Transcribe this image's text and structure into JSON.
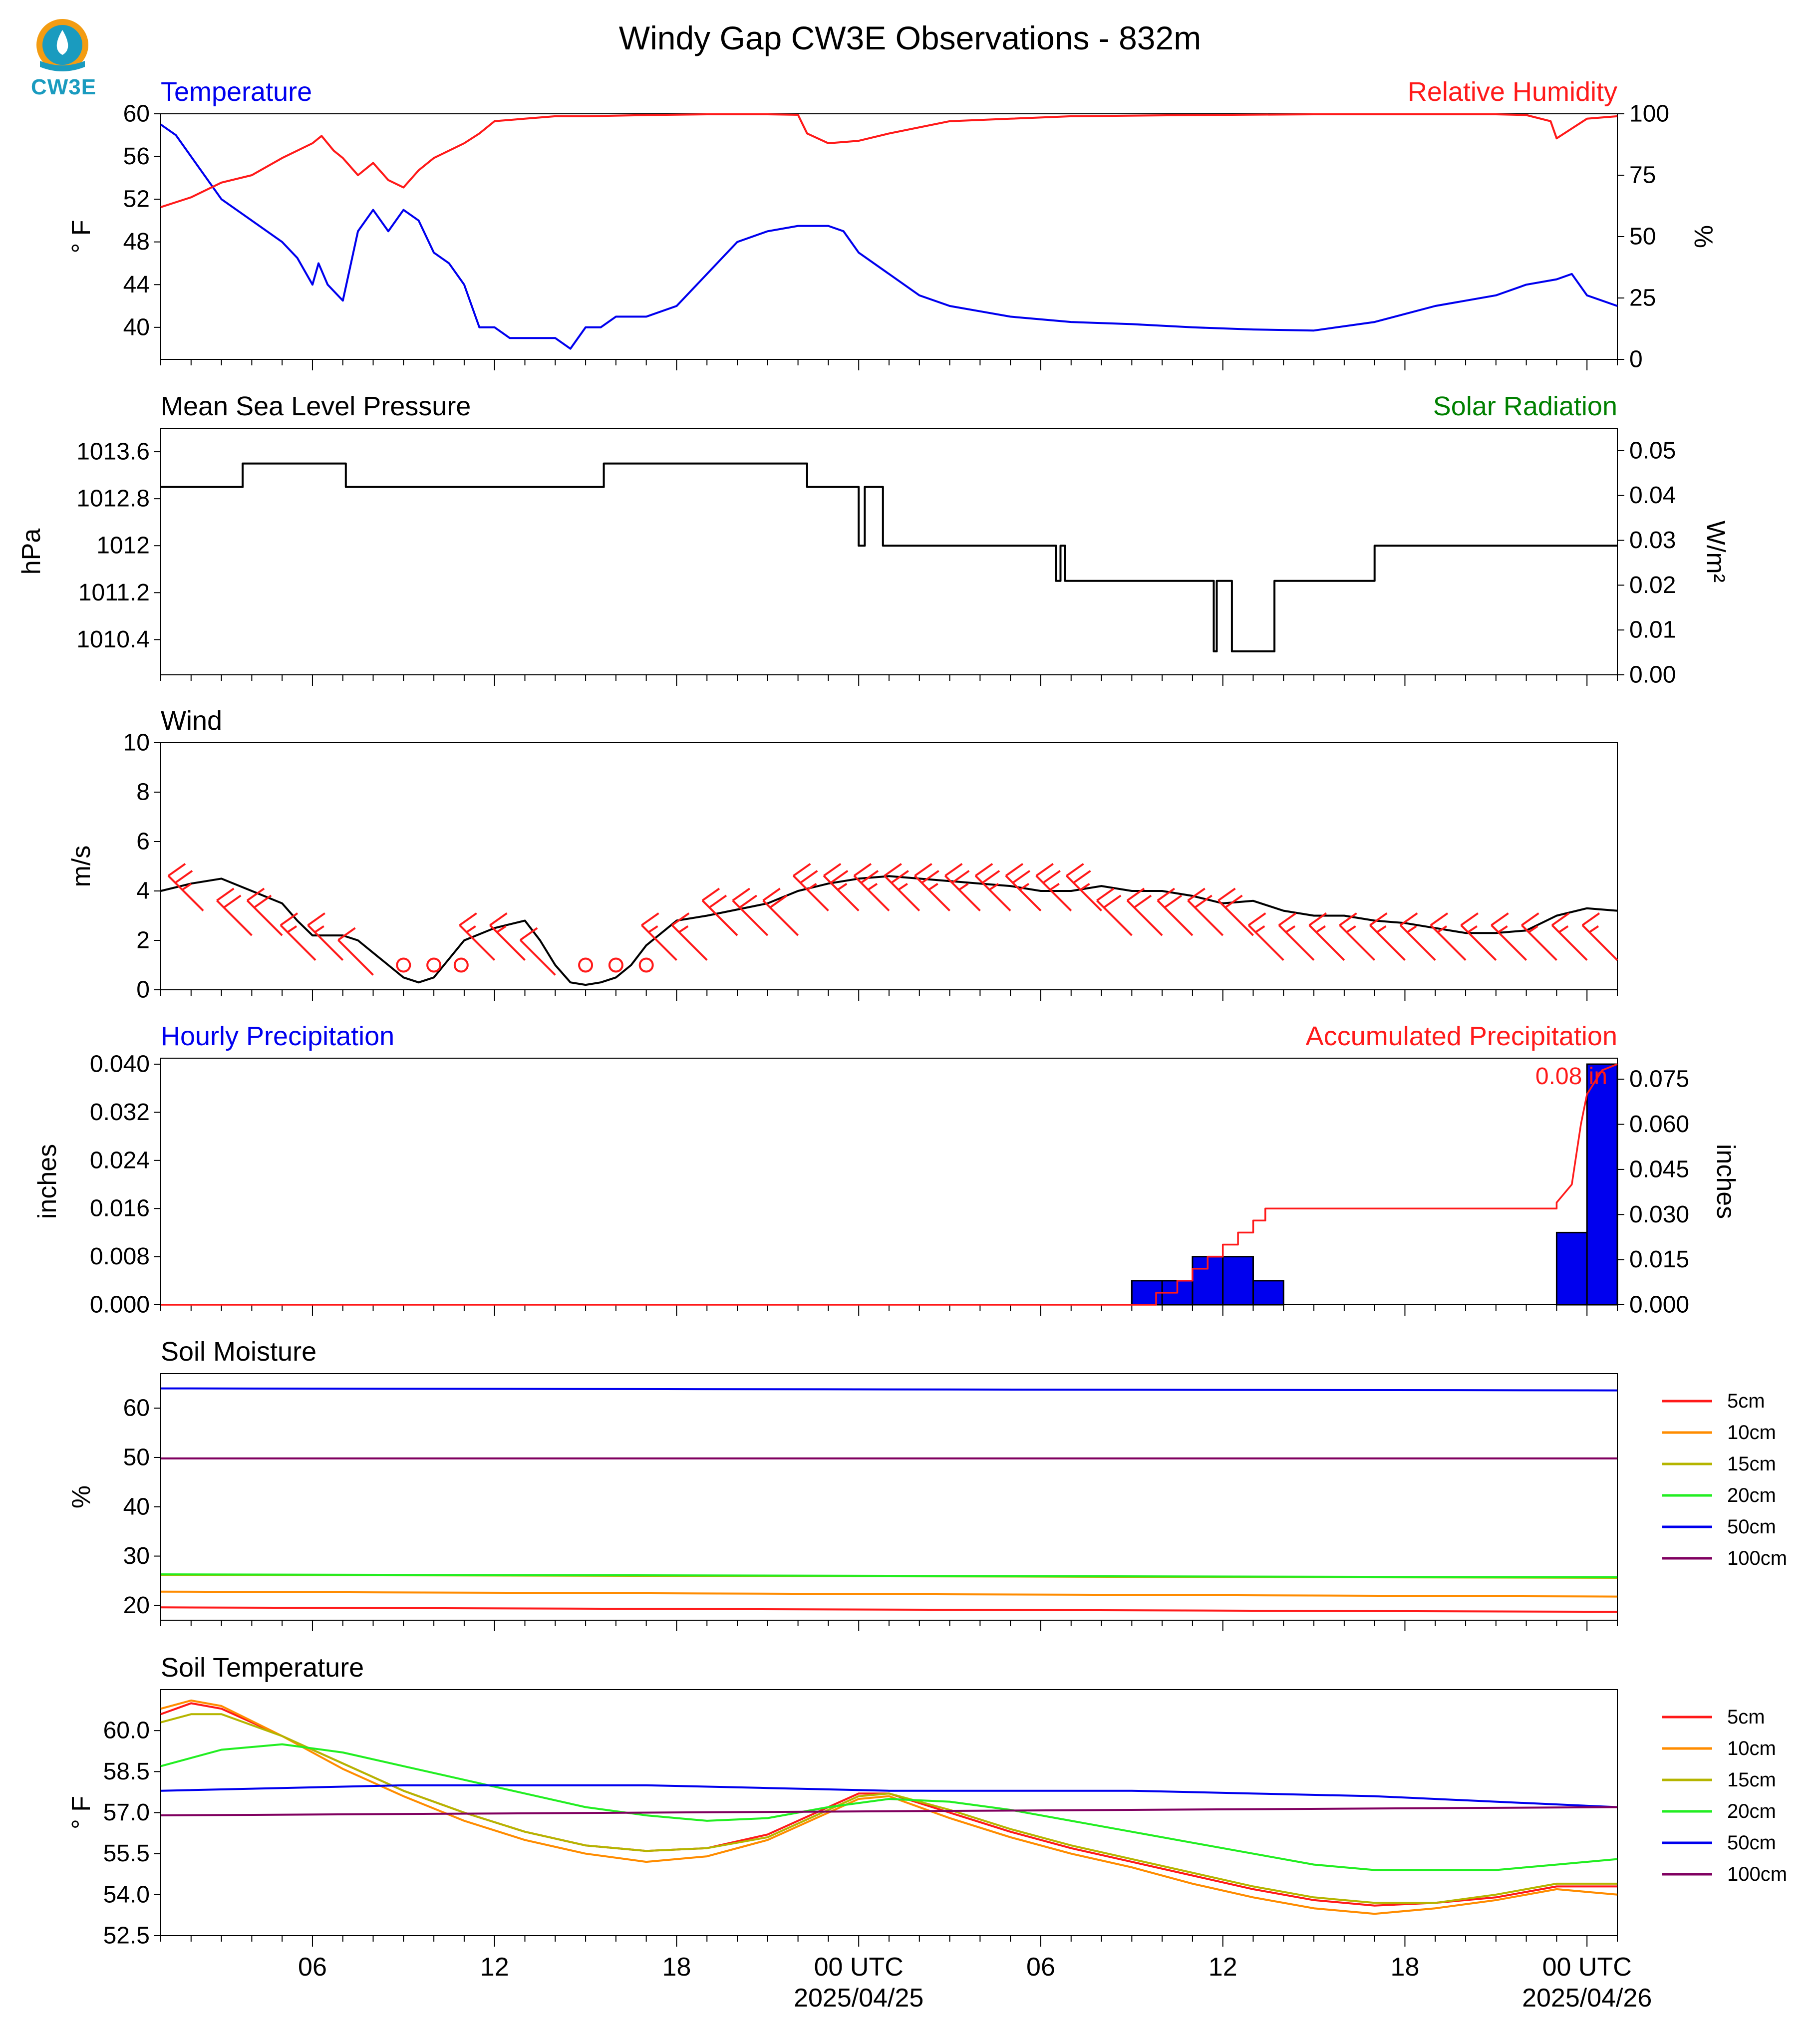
{
  "page_title": "Windy Gap CW3E Observations - 832m",
  "logo": {
    "text": "CW3E",
    "colors": {
      "orange": "#f39c12",
      "blue": "#1a9bbf"
    }
  },
  "x_axis": {
    "tick_labels": [
      "06",
      "12",
      "18",
      "00 UTC",
      "06",
      "12",
      "18",
      "00 UTC"
    ],
    "tick_hours": [
      5,
      11,
      17,
      23,
      29,
      35,
      41,
      47
    ],
    "date_labels": [
      {
        "text": "2025/04/25",
        "hour": 23
      },
      {
        "text": "2025/04/26",
        "hour": 47
      }
    ],
    "range_hours": [
      0,
      48
    ]
  },
  "colors": {
    "blue": "#0000ee",
    "red": "#ff1a1a",
    "green": "#008000",
    "black": "#000000"
  },
  "chart_data": [
    {
      "type": "line",
      "title_left": "Temperature",
      "title_right": "Relative Humidity",
      "ylabel": "° F",
      "y2label": "%",
      "ylim": [
        37,
        60
      ],
      "y2lim": [
        0,
        100
      ],
      "yticks": [
        40,
        44,
        48,
        52,
        56,
        60
      ],
      "y2ticks": [
        0,
        25,
        50,
        75,
        100
      ],
      "series": [
        {
          "axis": "left",
          "color": "#0000ee",
          "x": [
            0,
            0.5,
            1,
            2,
            3,
            4,
            4.5,
            5,
            5.2,
            5.5,
            6,
            6.5,
            7,
            7.5,
            8,
            8.5,
            9,
            9.5,
            10,
            10.5,
            11,
            11.5,
            12,
            12.5,
            13,
            13.5,
            14,
            14.5,
            15,
            15.5,
            16,
            17,
            18,
            19,
            20,
            21,
            22,
            22.5,
            23,
            24,
            25,
            26,
            27,
            28,
            30,
            32,
            34,
            36,
            38,
            40,
            42,
            44,
            45,
            46,
            46.5,
            47,
            48
          ],
          "y": [
            59,
            58,
            56,
            52,
            50,
            48,
            46.5,
            44,
            46,
            44,
            42.5,
            49,
            51,
            49,
            51,
            50,
            47,
            46,
            44,
            40,
            40,
            39,
            39,
            39,
            39,
            38,
            40,
            40,
            41,
            41,
            41,
            42,
            45,
            48,
            49,
            49.5,
            49.5,
            49,
            47,
            45,
            43,
            42,
            41.5,
            41,
            40.5,
            40.3,
            40,
            39.8,
            39.7,
            40.5,
            42,
            43,
            44,
            44.5,
            45,
            43,
            42
          ]
        },
        {
          "axis": "right",
          "color": "#ff1a1a",
          "x": [
            0,
            1,
            2,
            3,
            4,
            5,
            5.3,
            5.7,
            6,
            6.5,
            7,
            7.5,
            8,
            8.5,
            9,
            9.5,
            10,
            10.5,
            11,
            12,
            13,
            14,
            16,
            18,
            20,
            21,
            21.3,
            22,
            23,
            24,
            26,
            28,
            30,
            34,
            38,
            42,
            44,
            45,
            45.8,
            46,
            46.5,
            47,
            48
          ],
          "y": [
            62,
            66,
            72,
            75,
            82,
            88,
            91,
            85,
            82,
            75,
            80,
            73,
            70,
            77,
            82,
            85,
            88,
            92,
            97,
            98,
            99,
            99,
            99.5,
            99.8,
            99.8,
            99.6,
            92,
            88,
            89,
            92,
            97,
            98,
            99,
            99.5,
            99.8,
            99.8,
            99.8,
            99.5,
            97,
            90,
            94,
            98,
            99
          ]
        }
      ]
    },
    {
      "type": "line",
      "title_left": "Mean Sea Level Pressure",
      "title_right": "Solar Radiation",
      "ylabel": "hPa",
      "y2label": "W/m²",
      "ylim": [
        1009.8,
        1014.0
      ],
      "y2lim": [
        0,
        0.055
      ],
      "yticks": [
        1010.4,
        1011.2,
        1012.0,
        1012.8,
        1013.6
      ],
      "y2ticks": [
        0.0,
        0.01,
        0.02,
        0.03,
        0.04,
        0.05
      ],
      "y2tick_labels": [
        "0.00",
        "0.01",
        "0.02",
        "0.03",
        "0.04",
        "0.05"
      ],
      "series": [
        {
          "axis": "left",
          "color": "#000000",
          "x": [
            0,
            2.7,
            2.7,
            6.1,
            6.1,
            14.6,
            14.6,
            21.3,
            21.3,
            21.4,
            21.4,
            23.0,
            23.0,
            23.2,
            23.2,
            23.5,
            23.5,
            23.8,
            23.8,
            23.9,
            23.9,
            29.5,
            29.5,
            29.65,
            29.65,
            29.8,
            29.8,
            34.7,
            34.7,
            34.8,
            34.8,
            35.3,
            35.3,
            36.7,
            36.7,
            40.0,
            40.0,
            48
          ],
          "y": [
            1013.0,
            1013.0,
            1013.4,
            1013.4,
            1013.0,
            1013.0,
            1013.4,
            1013.4,
            1013.0,
            1013.0,
            1013.0,
            1013.0,
            1012.0,
            1012.0,
            1013.0,
            1013.0,
            1013.0,
            1013.0,
            1012.0,
            1012.0,
            1012.0,
            1012.0,
            1011.4,
            1011.4,
            1012.0,
            1012.0,
            1011.4,
            1011.4,
            1010.2,
            1010.2,
            1011.4,
            1011.4,
            1010.2,
            1010.2,
            1011.4,
            1011.4,
            1012.0,
            1012.0
          ]
        }
      ]
    },
    {
      "type": "line",
      "title_left": "Wind",
      "ylabel": "m/s",
      "ylim": [
        0,
        10
      ],
      "yticks": [
        0,
        2,
        4,
        6,
        8,
        10
      ],
      "series": [
        {
          "color": "#000000",
          "x": [
            0,
            1,
            2,
            3,
            4,
            4.5,
            5,
            6,
            6.5,
            7,
            7.5,
            8,
            8.5,
            9,
            10,
            11,
            12,
            12.5,
            13,
            13.5,
            14,
            14.5,
            15,
            15.5,
            16,
            17,
            18,
            20,
            21,
            22,
            23,
            24,
            25,
            26,
            27,
            28,
            29,
            30,
            31,
            32,
            33,
            34,
            35,
            36,
            37,
            38,
            39,
            40,
            41,
            42,
            43,
            44,
            45,
            46,
            47,
            48
          ],
          "y": [
            4,
            4.3,
            4.5,
            4,
            3.5,
            2.8,
            2.2,
            2.2,
            2,
            1.5,
            1,
            0.5,
            0.3,
            0.5,
            2,
            2.5,
            2.8,
            2,
            1,
            0.3,
            0.2,
            0.3,
            0.5,
            1,
            1.8,
            2.8,
            3,
            3.5,
            4,
            4.3,
            4.5,
            4.6,
            4.5,
            4.4,
            4.3,
            4.2,
            4,
            4,
            4.2,
            4,
            4,
            3.8,
            3.5,
            3.6,
            3.2,
            3,
            3,
            2.8,
            2.7,
            2.5,
            2.3,
            2.3,
            2.4,
            3,
            3.3,
            3.2
          ]
        }
      ],
      "barbs": {
        "color": "#ff1a1a",
        "x": [
          1.4,
          3,
          4,
          5.1,
          6,
          7,
          8,
          9,
          9.9,
          11,
          12,
          13,
          14,
          15,
          16,
          17,
          18,
          19,
          20,
          21,
          22,
          23,
          24,
          25,
          26,
          27,
          28,
          29,
          30,
          31,
          32,
          33,
          34,
          35,
          36,
          37,
          38,
          39,
          40,
          41,
          42,
          43,
          44,
          45,
          46,
          47,
          48
        ],
        "speed": [
          5,
          4,
          4,
          3,
          3,
          2,
          0,
          0,
          0,
          3,
          3,
          2,
          0,
          0,
          0,
          3,
          3,
          4,
          4,
          4,
          5,
          5,
          5,
          5,
          5,
          5,
          5,
          5,
          5,
          5,
          4,
          4,
          4,
          4,
          4,
          3,
          3,
          3,
          3,
          3,
          3,
          3,
          3,
          3,
          3,
          3,
          3
        ]
      }
    },
    {
      "type": "bar",
      "title_left": "Hourly Precipitation",
      "title_right": "Accumulated Precipitation",
      "ylabel": "inches",
      "y2label": "inches",
      "ylim": [
        0,
        0.041
      ],
      "y2lim": [
        0,
        0.082
      ],
      "yticks": [
        0.0,
        0.008,
        0.016,
        0.024,
        0.032,
        0.04
      ],
      "ytick_labels": [
        "0.000",
        "0.008",
        "0.016",
        "0.024",
        "0.032",
        "0.040"
      ],
      "y2ticks": [
        0.0,
        0.015,
        0.03,
        0.045,
        0.06,
        0.075
      ],
      "y2tick_labels": [
        "0.000",
        "0.015",
        "0.030",
        "0.045",
        "0.060",
        "0.075"
      ],
      "bars": {
        "color": "#0000ee",
        "x_start": [
          32,
          33,
          34,
          35,
          36,
          46,
          47
        ],
        "values": [
          0.004,
          0.004,
          0.008,
          0.008,
          0.004,
          0.012,
          0.04
        ]
      },
      "accum": {
        "color": "#ff1a1a",
        "x": [
          0,
          32.8,
          32.8,
          33.5,
          33.5,
          34,
          34,
          34.5,
          34.5,
          35,
          35,
          35.5,
          35.5,
          36,
          36,
          36.4,
          36.4,
          46,
          46,
          46.5,
          46.8,
          47,
          47.5,
          48
        ],
        "y": [
          0,
          0,
          0.004,
          0.004,
          0.008,
          0.008,
          0.012,
          0.012,
          0.016,
          0.016,
          0.02,
          0.02,
          0.024,
          0.024,
          0.028,
          0.028,
          0.032,
          0.032,
          0.034,
          0.04,
          0.06,
          0.07,
          0.078,
          0.08
        ]
      },
      "annotation": "0.08 in"
    },
    {
      "type": "line",
      "title_left": "Soil Moisture",
      "ylabel": "%",
      "ylim": [
        17,
        67
      ],
      "yticks": [
        20,
        30,
        40,
        50,
        60
      ],
      "series": [
        {
          "name": "5cm",
          "color": "#ff1a1a",
          "x": [
            0,
            48
          ],
          "y": [
            19.6,
            18.7
          ]
        },
        {
          "name": "10cm",
          "color": "#ff8c00",
          "x": [
            0,
            48
          ],
          "y": [
            22.8,
            21.8
          ]
        },
        {
          "name": "15cm",
          "color": "#b5b500",
          "x": [
            0,
            48
          ],
          "y": [
            26.2,
            25.6
          ]
        },
        {
          "name": "20cm",
          "color": "#22ee22",
          "x": [
            0,
            48
          ],
          "y": [
            26.3,
            25.7
          ]
        },
        {
          "name": "50cm",
          "color": "#0000ee",
          "x": [
            0,
            48
          ],
          "y": [
            64.0,
            63.6
          ]
        },
        {
          "name": "100cm",
          "color": "#800060",
          "x": [
            0,
            48
          ],
          "y": [
            49.8,
            49.8
          ]
        }
      ]
    },
    {
      "type": "line",
      "title_left": "Soil Temperature",
      "ylabel": "° F",
      "ylim": [
        52.5,
        61.5
      ],
      "yticks": [
        52.5,
        54.0,
        55.5,
        57.0,
        58.5,
        60.0
      ],
      "ytick_labels": [
        "52.5",
        "54.0",
        "55.5",
        "57.0",
        "58.5",
        "60.0"
      ],
      "series": [
        {
          "name": "5cm",
          "color": "#ff1a1a",
          "x": [
            0,
            1,
            2,
            4,
            6,
            8,
            10,
            12,
            14,
            16,
            18,
            20,
            22,
            23,
            24,
            26,
            28,
            30,
            32,
            34,
            36,
            38,
            40,
            42,
            44,
            46,
            48
          ],
          "y": [
            60.6,
            61.0,
            60.8,
            59.8,
            58.8,
            57.8,
            57.0,
            56.3,
            55.8,
            55.6,
            55.7,
            56.2,
            57.2,
            57.7,
            57.7,
            57.0,
            56.3,
            55.7,
            55.2,
            54.7,
            54.2,
            53.8,
            53.6,
            53.7,
            53.9,
            54.3,
            54.3
          ]
        },
        {
          "name": "10cm",
          "color": "#ff8c00",
          "x": [
            0,
            1,
            2,
            4,
            6,
            8,
            10,
            12,
            14,
            16,
            18,
            20,
            22,
            23,
            24,
            26,
            28,
            30,
            32,
            34,
            36,
            38,
            40,
            42,
            44,
            46,
            48
          ],
          "y": [
            60.8,
            61.1,
            60.9,
            59.8,
            58.6,
            57.6,
            56.7,
            56.0,
            55.5,
            55.2,
            55.4,
            56.0,
            57.0,
            57.5,
            57.6,
            56.8,
            56.1,
            55.5,
            55.0,
            54.4,
            53.9,
            53.5,
            53.3,
            53.5,
            53.8,
            54.2,
            54.0
          ]
        },
        {
          "name": "15cm",
          "color": "#b5b500",
          "x": [
            0,
            1,
            2,
            4,
            6,
            8,
            10,
            12,
            14,
            16,
            18,
            20,
            22,
            23,
            24,
            26,
            28,
            30,
            32,
            34,
            36,
            38,
            40,
            42,
            44,
            46,
            48
          ],
          "y": [
            60.3,
            60.6,
            60.6,
            59.8,
            58.8,
            57.8,
            57.0,
            56.3,
            55.8,
            55.6,
            55.7,
            56.1,
            57.1,
            57.6,
            57.7,
            57.1,
            56.4,
            55.8,
            55.3,
            54.8,
            54.3,
            53.9,
            53.7,
            53.7,
            54.0,
            54.4,
            54.4
          ]
        },
        {
          "name": "20cm",
          "color": "#22ee22",
          "x": [
            0,
            2,
            4,
            6,
            8,
            10,
            12,
            14,
            16,
            18,
            20,
            22,
            24,
            26,
            28,
            30,
            32,
            34,
            36,
            38,
            40,
            42,
            44,
            46,
            48
          ],
          "y": [
            58.7,
            59.3,
            59.5,
            59.2,
            58.7,
            58.2,
            57.7,
            57.2,
            56.9,
            56.7,
            56.8,
            57.2,
            57.5,
            57.4,
            57.1,
            56.7,
            56.3,
            55.9,
            55.5,
            55.1,
            54.9,
            54.9,
            54.9,
            55.1,
            55.3
          ]
        },
        {
          "name": "50cm",
          "color": "#0000ee",
          "x": [
            0,
            4,
            8,
            12,
            16,
            20,
            24,
            28,
            32,
            36,
            40,
            44,
            48
          ],
          "y": [
            57.8,
            57.9,
            58.0,
            58.0,
            58.0,
            57.9,
            57.8,
            57.8,
            57.8,
            57.7,
            57.6,
            57.4,
            57.2
          ]
        },
        {
          "name": "100cm",
          "color": "#800060",
          "x": [
            0,
            48
          ],
          "y": [
            56.9,
            57.2
          ]
        }
      ]
    }
  ]
}
